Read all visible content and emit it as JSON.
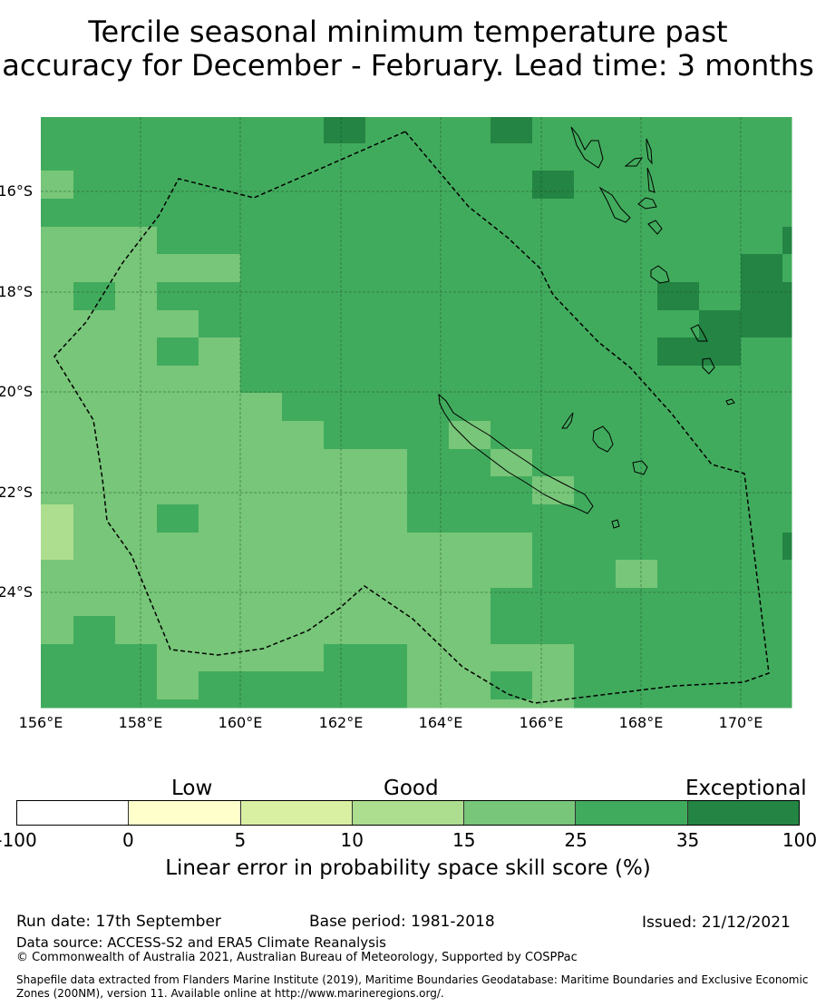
{
  "title": {
    "line1": "Tercile seasonal minimum temperature past",
    "line2": "accuracy for December - February. Lead time: 3 months"
  },
  "map": {
    "lat_labels": [
      "16°S",
      "18°S",
      "20°S",
      "22°S",
      "24°S"
    ],
    "lon_labels": [
      "156°E",
      "158°E",
      "160°E",
      "162°E",
      "164°E",
      "166°E",
      "168°E",
      "170°E"
    ],
    "category_colors": {
      "D": "#238443",
      "M": "#41ab5d",
      "L": "#78c679",
      "P": "#addd8e"
    },
    "grid_rows": [
      "MMMMMMMDMMMDMMMMMMM",
      "MMMMMMMMMMMMMMMMMMM",
      "LMMMMMMMMMMMDMMMMMM",
      "MMMMMMMMMMMMMMMMMMM",
      "LLLMMMMMMMMMMMMMMMD",
      "LLLLLMMMMMMMMMMMMDM",
      "LMLMMMMMMMMMMMMDMDD",
      "LLLLMMMMMMMMMMMMDDD",
      "LLLMLMMMMMMMMMMDDMM",
      "LLLLLMMMMMMMMMMMMMM",
      "LLLLLLMMMMMMMMMMMMM",
      "LLLLLLLMMMLMMMMMMMM",
      "LLLLLLLLLMMLMMMMMMM",
      "LLLLLLLLLMMMLMMMMMM",
      "PLLMLLLLLMMMMMMMMMM",
      "PLLLLLLLLLLLMMMMMMD",
      "LLLLLLLLLLLLMMLMMMM",
      "LLLLLLLLLLLMMMMMMMM",
      "LMLLLLLLLLLMMMMMMMM",
      "MMMLLLLMMLLLLMMMMMM",
      "MMMLMMMMMLLMLMMMMMM",
      "MMMMMMMMMLLLLMMMMMM"
    ]
  },
  "colorbar": {
    "headings": [
      "Low",
      "Good",
      "Exceptional"
    ],
    "ticks": [
      "-100",
      "0",
      "5",
      "10",
      "15",
      "25",
      "35",
      "100"
    ],
    "colors": [
      "#ffffff",
      "#ffffcc",
      "#d9f0a3",
      "#addd8e",
      "#78c679",
      "#41ab5d",
      "#238443"
    ],
    "label": "Linear error in probability space skill score (%)"
  },
  "footer": {
    "run_date": "Run date: 17th September",
    "base_period": "Base period: 1981-2018",
    "issued": "Issued: 21/12/2021",
    "data_source": "Data source: ACCESS-S2 and ERA5 Climate Reanalysis",
    "copyright": "© Commonwealth of Australia 2021, Australian Bureau of Meteorology, Supported by COSPPac",
    "shapefile_line1": "Shapefile data extracted from Flanders Marine Institute (2019), Maritime Boundaries Geodatabase: Maritime Boundaries and Exclusive Economic",
    "shapefile_line2": "Zones (200NM), version 11. Available online at http://www.marineregions.org/."
  }
}
